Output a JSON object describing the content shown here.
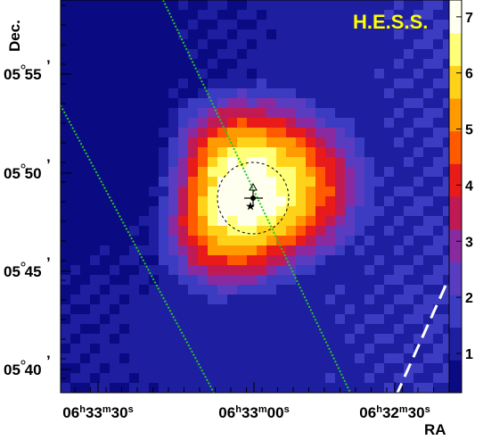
{
  "chart_data": {
    "type": "heatmap",
    "title": "",
    "badge": "H.E.S.S.",
    "xlabel": "RA",
    "ylabel": "Dec.",
    "x_ticks": [
      {
        "h": "06",
        "m": "33",
        "s": "30"
      },
      {
        "h": "06",
        "m": "33",
        "s": "00"
      },
      {
        "h": "06",
        "m": "32",
        "s": "30"
      }
    ],
    "y_ticks": [
      {
        "deg": "05",
        "min": "55"
      },
      {
        "deg": "05",
        "min": "50"
      },
      {
        "deg": "05",
        "min": "45"
      },
      {
        "deg": "05",
        "min": "40"
      }
    ],
    "colorbar_ticks": [
      "7",
      "6",
      "5",
      "4",
      "3",
      "2",
      "1"
    ],
    "colorbar_range": [
      0.3,
      7.3
    ],
    "peak_value": 7.2,
    "colors": {
      "map_cmap": [
        "#0a0a82",
        "#1e1ea0",
        "#3c3cc2",
        "#5a3cc0",
        "#8a2aa0",
        "#c01a55",
        "#e81a1a",
        "#ff5a00",
        "#ff9a00",
        "#ffd21a",
        "#ffff78",
        "#fffff0"
      ],
      "badge_text": "#ffff00",
      "galactic_lines": "#27c827",
      "dashed_line": "#ffffff"
    }
  }
}
